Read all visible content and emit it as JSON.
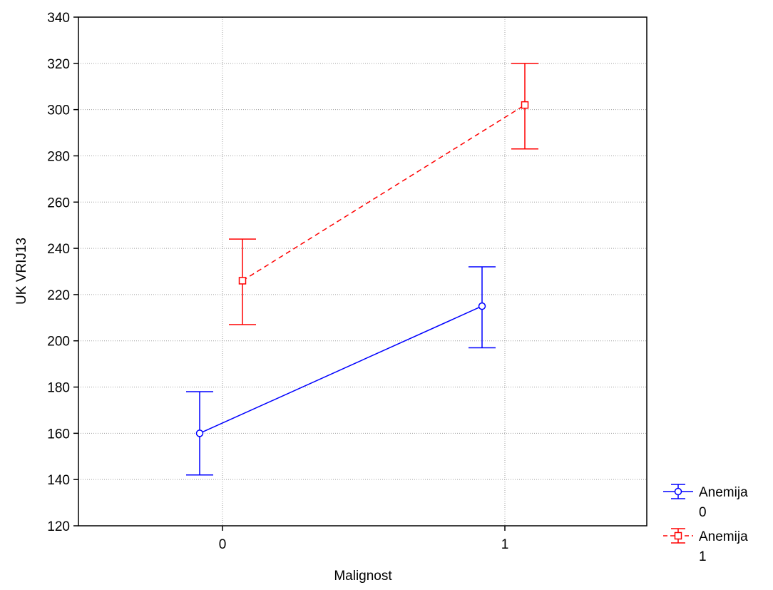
{
  "chart_data": {
    "type": "line",
    "title": "",
    "xlabel": "Malignost",
    "ylabel": "UK VRIJ13",
    "categories": [
      "0",
      "1"
    ],
    "ylim": [
      120,
      340
    ],
    "yticks": [
      120,
      140,
      160,
      180,
      200,
      220,
      240,
      260,
      280,
      300,
      320,
      340
    ],
    "grid": true,
    "legend_position": "bottom-right",
    "series": [
      {
        "name_line1": "Anemija",
        "name_line2": "0",
        "color": "#0000ff",
        "marker": "circle",
        "line_style": "solid",
        "values": [
          160,
          215
        ],
        "ci_lower": [
          142,
          197
        ],
        "ci_upper": [
          178,
          232
        ]
      },
      {
        "name_line1": "Anemija",
        "name_line2": "1",
        "color": "#ff0000",
        "marker": "square",
        "line_style": "dashed",
        "values": [
          226,
          302
        ],
        "ci_lower": [
          207,
          283
        ],
        "ci_upper": [
          244,
          320
        ]
      }
    ]
  }
}
